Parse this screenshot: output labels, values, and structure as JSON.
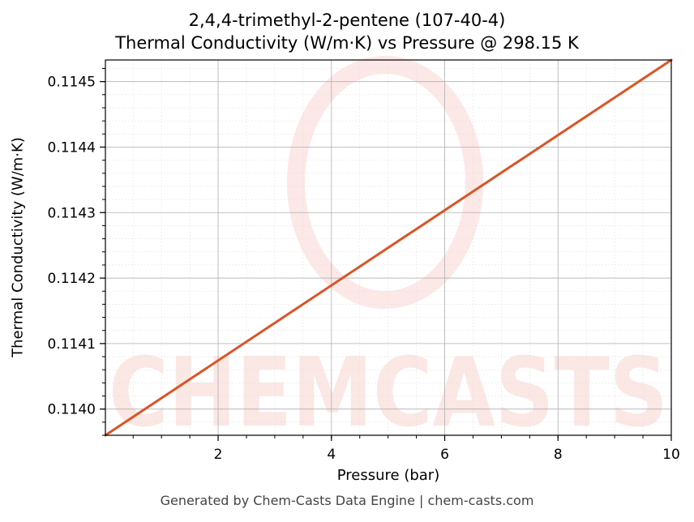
{
  "chart_data": {
    "type": "line",
    "title": "2,4,4-trimethyl-2-pentene (107-40-4)",
    "subtitle": "Thermal Conductivity (W/m·K) vs Pressure @ 298.15 K",
    "xlabel": "Pressure (bar)",
    "ylabel": "Thermal Conductivity (W/m·K)",
    "xlim": [
      0.01,
      10
    ],
    "ylim": [
      0.11396,
      0.114533
    ],
    "xticks": [
      2,
      4,
      6,
      8,
      10
    ],
    "yticks": [
      0.114,
      0.1141,
      0.1142,
      0.1143,
      0.1144,
      0.1145
    ],
    "ytick_labels": [
      "0.1140",
      "0.1141",
      "0.1142",
      "0.1143",
      "0.1144",
      "0.1145"
    ],
    "grid": true,
    "series": [
      {
        "x": [
          0.01,
          10
        ],
        "y": [
          0.11396,
          0.114533
        ]
      }
    ],
    "line_color": "#d95525",
    "watermark": "CHEMCASTS"
  },
  "footer": "Generated by Chem-Casts Data Engine | chem-casts.com"
}
